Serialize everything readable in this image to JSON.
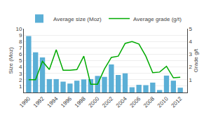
{
  "chart_data": {
    "type": "bar",
    "x": [
      1990,
      1991,
      1992,
      1993,
      1994,
      1995,
      1996,
      1997,
      1998,
      1999,
      2000,
      2001,
      2002,
      2003,
      2004,
      2005,
      2006,
      2007,
      2008,
      2009,
      2010,
      2011,
      2012
    ],
    "xlim": [
      1989.3,
      2013
    ],
    "xticks": [
      1990,
      1992,
      1994,
      1996,
      1998,
      2000,
      2002,
      2004,
      2006,
      2008,
      2010,
      2012
    ],
    "ylabel": "Size (Moz)",
    "ylim": [
      0,
      10
    ],
    "yticks": [
      1,
      2,
      3,
      4,
      5,
      6,
      7,
      8,
      9,
      10
    ],
    "y2label": "Grade g/t",
    "y2lim": [
      0,
      5
    ],
    "y2ticks": [
      1,
      2,
      3,
      4,
      5
    ],
    "grid": true,
    "legend": "top",
    "series": [
      {
        "name": "Average size (Moz)",
        "type": "bar",
        "color": "#5bafd6",
        "values": [
          8.85,
          6.3,
          5.5,
          2.1,
          2.1,
          1.7,
          1.4,
          1.85,
          2.05,
          2.1,
          2.6,
          2.45,
          4.4,
          2.75,
          3.0,
          0.82,
          1.2,
          1.15,
          1.55,
          0.38,
          2.65,
          1.85,
          0.75
        ]
      },
      {
        "name": "Average grade (g/t)",
        "type": "line",
        "color": "#00aa00",
        "axis": "y2",
        "values": [
          1.0,
          1.0,
          2.45,
          1.8,
          3.35,
          1.75,
          1.75,
          1.8,
          2.85,
          0.65,
          0.65,
          1.85,
          2.75,
          2.85,
          3.85,
          4.0,
          3.8,
          2.85,
          1.55,
          1.6,
          2.05,
          1.15,
          1.2
        ]
      }
    ]
  }
}
